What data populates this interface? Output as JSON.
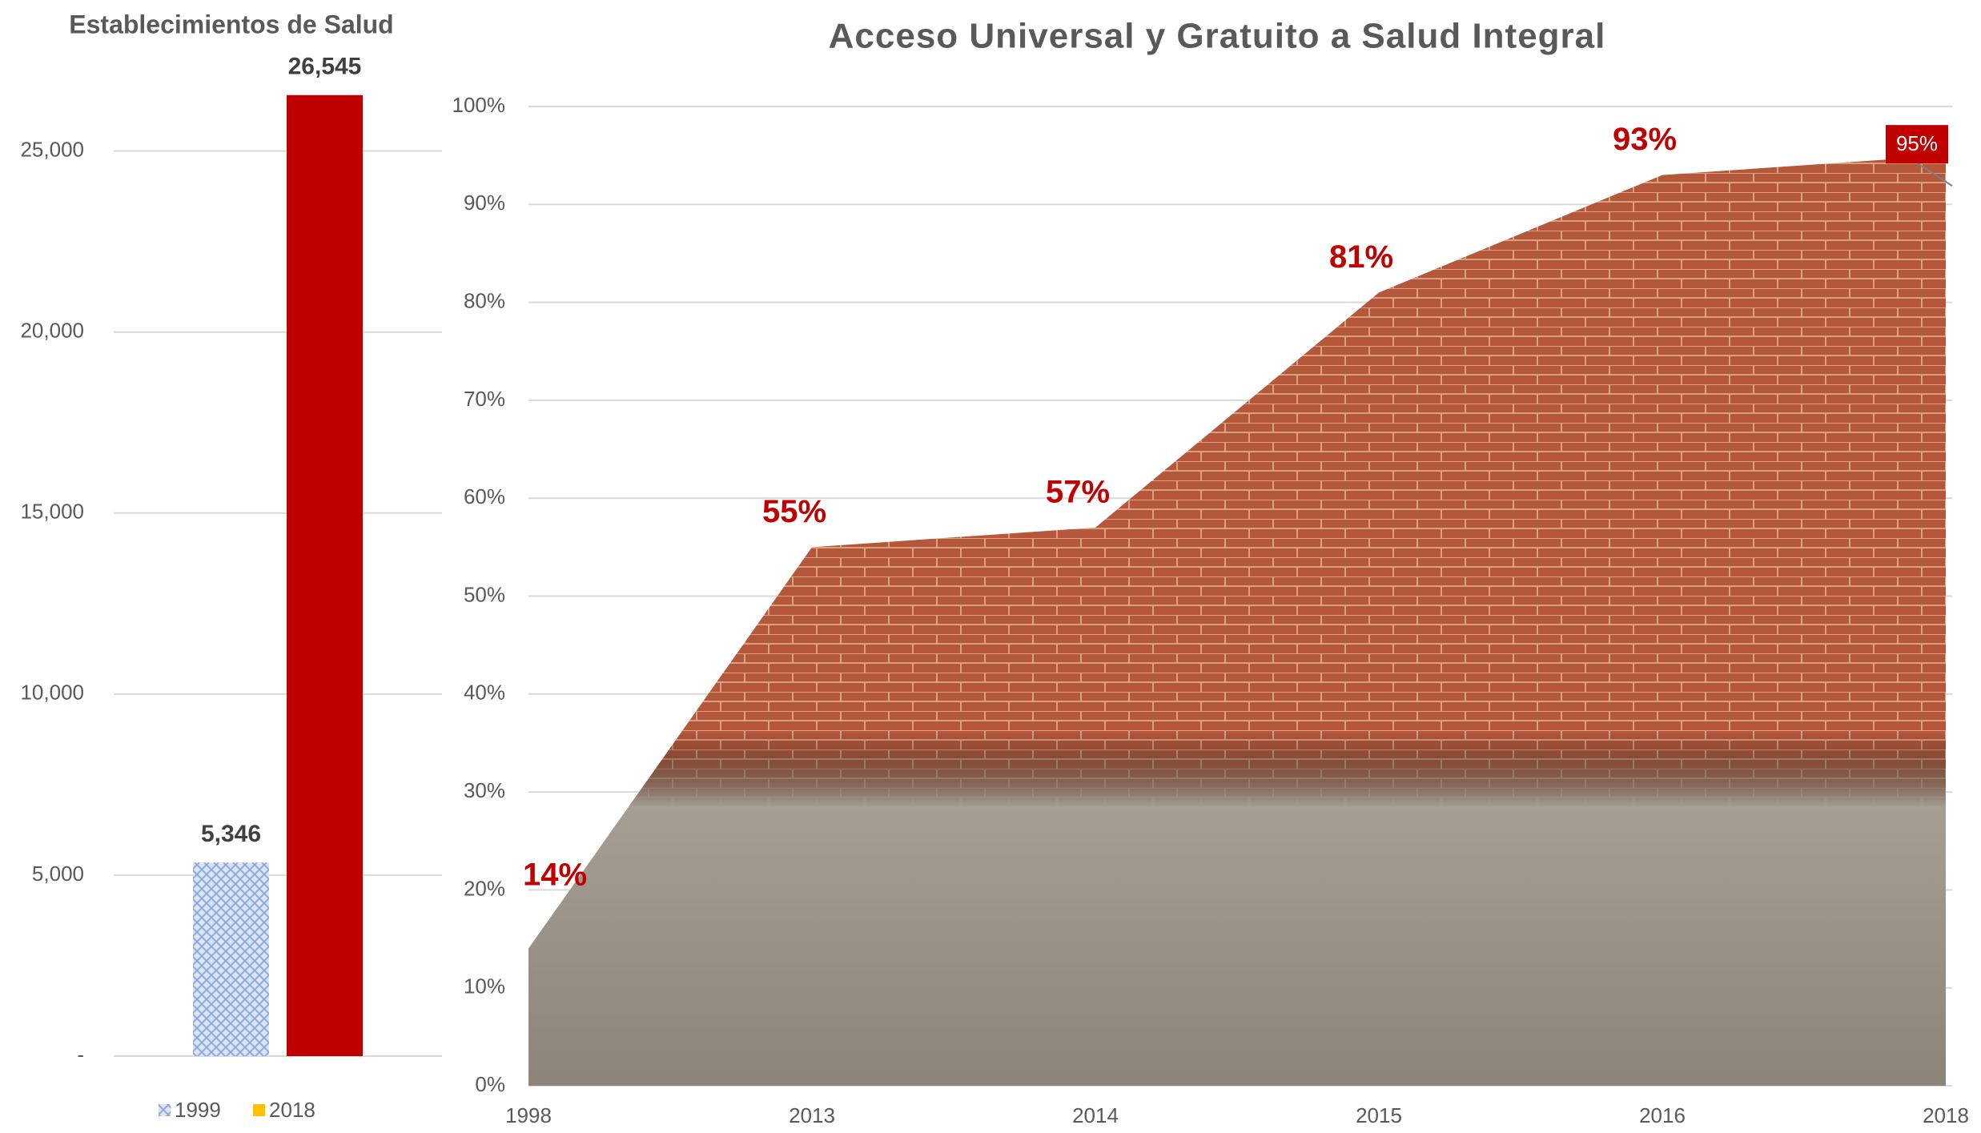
{
  "chart_data": [
    {
      "type": "bar",
      "title": "Establecimientos de Salud",
      "series": [
        {
          "name": "1999",
          "color": "#8eaadb",
          "values": [
            5346
          ],
          "value_labels": [
            "5,346"
          ]
        },
        {
          "name": "2018",
          "color": "#c00000",
          "legend_color": "#ffc000",
          "values": [
            26545
          ],
          "value_labels": [
            "26,545"
          ]
        }
      ],
      "ylim": [
        0,
        28000
      ],
      "yticks": [
        {
          "value": 0,
          "label": "-"
        },
        {
          "value": 5000,
          "label": "5,000"
        },
        {
          "value": 10000,
          "label": "10,000"
        },
        {
          "value": 15000,
          "label": "15,000"
        },
        {
          "value": 20000,
          "label": "20,000"
        },
        {
          "value": 25000,
          "label": "25,000"
        }
      ],
      "grid": true
    },
    {
      "type": "area",
      "title": "Acceso Universal y Gratuito a Salud Integral",
      "categories": [
        "1998",
        "2013",
        "2014",
        "2015",
        "2016",
        "2018"
      ],
      "values": [
        14,
        55,
        57,
        81,
        93,
        95
      ],
      "value_labels": [
        "14%",
        "55%",
        "57%",
        "81%",
        "93%",
        "95%"
      ],
      "color": "#c00000",
      "ylim": [
        0,
        100
      ],
      "yticks": [
        {
          "value": 0,
          "label": "0%"
        },
        {
          "value": 10,
          "label": "10%"
        },
        {
          "value": 20,
          "label": "20%"
        },
        {
          "value": 30,
          "label": "30%"
        },
        {
          "value": 40,
          "label": "40%"
        },
        {
          "value": 50,
          "label": "50%"
        },
        {
          "value": 60,
          "label": "60%"
        },
        {
          "value": 70,
          "label": "70%"
        },
        {
          "value": 80,
          "label": "80%"
        },
        {
          "value": 90,
          "label": "90%"
        },
        {
          "value": 100,
          "label": "100%"
        }
      ],
      "grid": true
    }
  ]
}
